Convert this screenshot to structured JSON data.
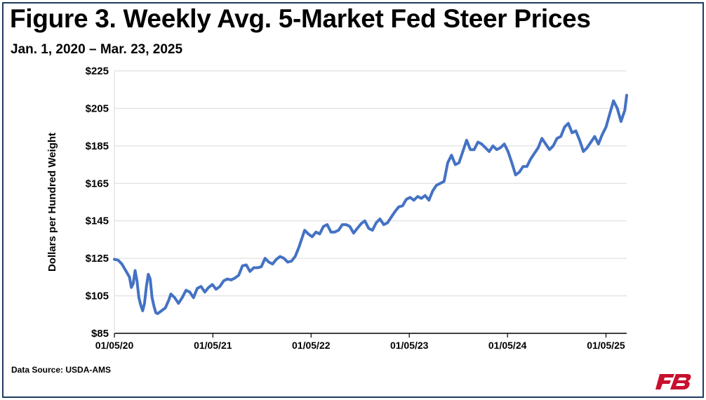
{
  "title": "Figure 3. Weekly Avg. 5-Market Fed Steer Prices",
  "subtitle": "Jan. 1, 2020 – Mar. 23, 2025",
  "source": "Data Source:  USDA-AMS",
  "logo": {
    "icon": "farm-bureau-logo",
    "color": "#c8102e"
  },
  "chart_data": {
    "type": "line",
    "title": "Figure 3. Weekly Avg. 5-Market Fed Steer Prices",
    "subtitle": "Jan. 1, 2020 – Mar. 23, 2025",
    "xlabel": "",
    "ylabel": "Dollars per Hundred Weight",
    "ylim": [
      85,
      225
    ],
    "yticks": [
      85,
      105,
      125,
      145,
      165,
      185,
      205,
      225
    ],
    "ytick_labels": [
      "$85",
      "$105",
      "$125",
      "$145",
      "$165",
      "$185",
      "$205",
      "$225"
    ],
    "xlim": [
      "2020-01-05",
      "2025-03-23"
    ],
    "xticks": [
      "2020-01-05",
      "2021-01-05",
      "2022-01-05",
      "2023-01-05",
      "2024-01-05",
      "2025-01-05"
    ],
    "xtick_labels": [
      "01/05/20",
      "01/05/21",
      "01/05/22",
      "01/05/23",
      "01/05/24",
      "01/05/25"
    ],
    "grid": "horizontal",
    "line_color": "#4472c4",
    "series": [
      {
        "name": "",
        "points": [
          [
            "2020-01-05",
            124.5
          ],
          [
            "2020-01-19",
            124.0
          ],
          [
            "2020-02-02",
            122.0
          ],
          [
            "2020-02-16",
            118.5
          ],
          [
            "2020-03-01",
            115.0
          ],
          [
            "2020-03-08",
            109.5
          ],
          [
            "2020-03-15",
            111.5
          ],
          [
            "2020-03-22",
            118.5
          ],
          [
            "2020-03-29",
            113.0
          ],
          [
            "2020-04-05",
            104.0
          ],
          [
            "2020-04-12",
            100.0
          ],
          [
            "2020-04-19",
            97.0
          ],
          [
            "2020-04-26",
            101.0
          ],
          [
            "2020-05-03",
            110.0
          ],
          [
            "2020-05-10",
            116.5
          ],
          [
            "2020-05-17",
            114.0
          ],
          [
            "2020-05-24",
            104.0
          ],
          [
            "2020-05-31",
            99.5
          ],
          [
            "2020-06-07",
            96.0
          ],
          [
            "2020-06-14",
            95.5
          ],
          [
            "2020-06-28",
            97.0
          ],
          [
            "2020-07-12",
            98.5
          ],
          [
            "2020-07-26",
            103.0
          ],
          [
            "2020-08-02",
            106.0
          ],
          [
            "2020-08-16",
            104.0
          ],
          [
            "2020-08-30",
            101.0
          ],
          [
            "2020-09-13",
            104.0
          ],
          [
            "2020-09-27",
            108.0
          ],
          [
            "2020-10-11",
            107.0
          ],
          [
            "2020-10-25",
            104.0
          ],
          [
            "2020-11-08",
            109.0
          ],
          [
            "2020-11-22",
            110.0
          ],
          [
            "2020-12-06",
            107.0
          ],
          [
            "2020-12-20",
            109.5
          ],
          [
            "2021-01-03",
            111.0
          ],
          [
            "2021-01-17",
            108.5
          ],
          [
            "2021-01-31",
            110.0
          ],
          [
            "2021-02-14",
            113.0
          ],
          [
            "2021-02-28",
            114.0
          ],
          [
            "2021-03-14",
            113.5
          ],
          [
            "2021-03-28",
            114.5
          ],
          [
            "2021-04-11",
            116.0
          ],
          [
            "2021-04-25",
            121.0
          ],
          [
            "2021-05-09",
            121.5
          ],
          [
            "2021-05-23",
            118.0
          ],
          [
            "2021-06-06",
            120.0
          ],
          [
            "2021-06-20",
            120.0
          ],
          [
            "2021-07-04",
            120.5
          ],
          [
            "2021-07-18",
            125.0
          ],
          [
            "2021-08-01",
            123.0
          ],
          [
            "2021-08-15",
            122.0
          ],
          [
            "2021-08-29",
            124.5
          ],
          [
            "2021-09-12",
            126.0
          ],
          [
            "2021-09-26",
            125.0
          ],
          [
            "2021-10-10",
            123.0
          ],
          [
            "2021-10-24",
            123.5
          ],
          [
            "2021-11-07",
            126.0
          ],
          [
            "2021-11-21",
            131.0
          ],
          [
            "2021-12-05",
            137.0
          ],
          [
            "2021-12-12",
            140.0
          ],
          [
            "2021-12-26",
            138.0
          ],
          [
            "2022-01-09",
            136.5
          ],
          [
            "2022-01-23",
            139.0
          ],
          [
            "2022-02-06",
            138.0
          ],
          [
            "2022-02-20",
            142.0
          ],
          [
            "2022-03-06",
            143.0
          ],
          [
            "2022-03-20",
            139.0
          ],
          [
            "2022-04-03",
            139.0
          ],
          [
            "2022-04-17",
            140.0
          ],
          [
            "2022-05-01",
            143.0
          ],
          [
            "2022-05-15",
            143.0
          ],
          [
            "2022-05-29",
            142.0
          ],
          [
            "2022-06-12",
            138.5
          ],
          [
            "2022-06-26",
            141.0
          ],
          [
            "2022-07-10",
            143.5
          ],
          [
            "2022-07-24",
            145.0
          ],
          [
            "2022-08-07",
            141.0
          ],
          [
            "2022-08-21",
            140.0
          ],
          [
            "2022-09-04",
            144.0
          ],
          [
            "2022-09-18",
            146.0
          ],
          [
            "2022-10-02",
            143.0
          ],
          [
            "2022-10-16",
            144.0
          ],
          [
            "2022-10-30",
            147.0
          ],
          [
            "2022-11-13",
            150.0
          ],
          [
            "2022-11-27",
            152.5
          ],
          [
            "2022-12-11",
            153.0
          ],
          [
            "2022-12-25",
            156.5
          ],
          [
            "2023-01-08",
            157.5
          ],
          [
            "2023-01-22",
            156.0
          ],
          [
            "2023-02-05",
            158.0
          ],
          [
            "2023-02-19",
            157.0
          ],
          [
            "2023-03-05",
            158.5
          ],
          [
            "2023-03-19",
            156.0
          ],
          [
            "2023-04-02",
            161.0
          ],
          [
            "2023-04-16",
            164.0
          ],
          [
            "2023-04-30",
            165.0
          ],
          [
            "2023-05-14",
            166.0
          ],
          [
            "2023-05-28",
            176.0
          ],
          [
            "2023-06-11",
            180.0
          ],
          [
            "2023-06-25",
            175.0
          ],
          [
            "2023-07-09",
            176.0
          ],
          [
            "2023-07-23",
            182.0
          ],
          [
            "2023-08-06",
            188.0
          ],
          [
            "2023-08-20",
            183.0
          ],
          [
            "2023-09-03",
            183.0
          ],
          [
            "2023-09-17",
            187.0
          ],
          [
            "2023-10-01",
            186.0
          ],
          [
            "2023-10-15",
            184.0
          ],
          [
            "2023-10-29",
            182.0
          ],
          [
            "2023-11-12",
            185.0
          ],
          [
            "2023-11-26",
            183.0
          ],
          [
            "2023-12-10",
            184.0
          ],
          [
            "2023-12-24",
            186.0
          ],
          [
            "2024-01-07",
            182.0
          ],
          [
            "2024-01-21",
            176.0
          ],
          [
            "2024-02-04",
            169.5
          ],
          [
            "2024-02-18",
            171.0
          ],
          [
            "2024-03-03",
            174.0
          ],
          [
            "2024-03-17",
            174.0
          ],
          [
            "2024-03-31",
            178.0
          ],
          [
            "2024-04-14",
            181.0
          ],
          [
            "2024-04-28",
            184.0
          ],
          [
            "2024-05-12",
            189.0
          ],
          [
            "2024-05-26",
            186.0
          ],
          [
            "2024-06-09",
            183.0
          ],
          [
            "2024-06-23",
            185.0
          ],
          [
            "2024-07-07",
            189.0
          ],
          [
            "2024-07-21",
            190.0
          ],
          [
            "2024-08-04",
            195.0
          ],
          [
            "2024-08-18",
            197.0
          ],
          [
            "2024-09-01",
            192.0
          ],
          [
            "2024-09-15",
            193.0
          ],
          [
            "2024-09-29",
            188.0
          ],
          [
            "2024-10-13",
            182.0
          ],
          [
            "2024-10-27",
            184.0
          ],
          [
            "2024-11-10",
            187.0
          ],
          [
            "2024-11-24",
            190.0
          ],
          [
            "2024-12-08",
            186.0
          ],
          [
            "2024-12-22",
            191.0
          ],
          [
            "2025-01-05",
            195.0
          ],
          [
            "2025-01-19",
            202.0
          ],
          [
            "2025-02-02",
            209.0
          ],
          [
            "2025-02-16",
            205.0
          ],
          [
            "2025-03-02",
            198.0
          ],
          [
            "2025-03-16",
            204.0
          ],
          [
            "2025-03-23",
            212.0
          ]
        ]
      }
    ]
  }
}
